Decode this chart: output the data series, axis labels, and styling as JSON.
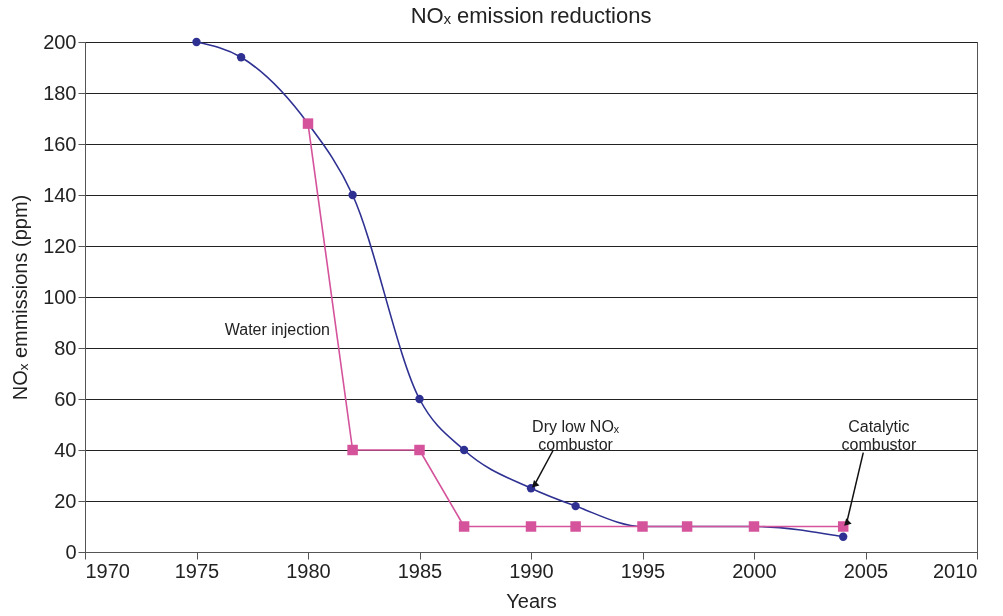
{
  "chart_data": {
    "type": "line",
    "title": "NOₓ emission reductions",
    "xlabel": "Years",
    "ylabel": "NOₓ emmissions (ppm)",
    "xlim": [
      1970,
      2010
    ],
    "xticks": [
      1970,
      1975,
      1980,
      1985,
      1990,
      1995,
      2000,
      2005,
      2010
    ],
    "ylim": [
      0,
      200
    ],
    "yticks": [
      0,
      20,
      40,
      60,
      80,
      100,
      120,
      140,
      160,
      180,
      200
    ],
    "grid": "y",
    "series": [
      {
        "color": "#2e3192",
        "marker": "circle",
        "x": [
          1975,
          1977,
          1980,
          1982,
          1985,
          1987,
          1990,
          1992,
          1995,
          2000,
          2004
        ],
        "values": [
          200,
          194,
          168,
          140,
          60,
          40,
          25,
          18,
          10,
          10,
          6
        ]
      },
      {
        "color": "#d4539b",
        "marker": "square",
        "x": [
          1980,
          1982,
          1985,
          1987,
          1990,
          1992,
          1995,
          1997,
          2000,
          2004
        ],
        "values": [
          168,
          40,
          40,
          10,
          10,
          10,
          10,
          10,
          10,
          10
        ]
      }
    ],
    "annotations": [
      "Water injection",
      {
        "text": "Dry low NOₓ\ncombustor",
        "x": 1990,
        "y": 25
      },
      {
        "text": "Catalytic\ncombustor",
        "x": 2004,
        "y": 10
      }
    ]
  }
}
